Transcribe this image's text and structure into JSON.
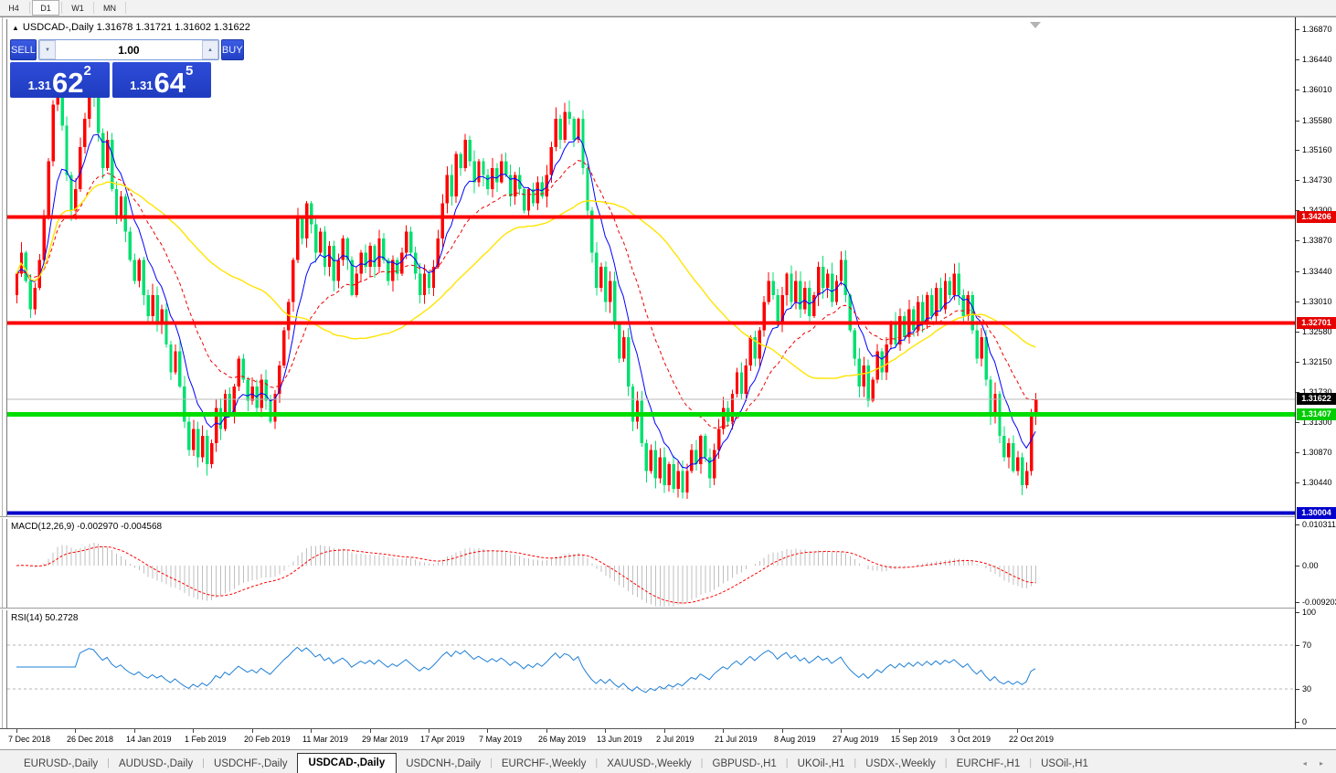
{
  "toolbar": {
    "timeframes": [
      {
        "label": "H4",
        "active": false
      },
      {
        "label": "D1",
        "active": true
      },
      {
        "label": "W1",
        "active": false
      },
      {
        "label": "MN",
        "active": false
      }
    ]
  },
  "chart": {
    "collapse_icon": "▲",
    "title": "USDCAD-,Daily  1.31678 1.31721 1.31602 1.31622"
  },
  "trade_panel": {
    "sell_label": "SELL",
    "buy_label": "BUY",
    "volume": "1.00",
    "down_icon": "▼",
    "up_icon": "▲",
    "bid_prefix": "1.31",
    "bid_big": "62",
    "bid_sup": "2",
    "ask_prefix": "1.31",
    "ask_big": "64",
    "ask_sup": "5"
  },
  "indicators": {
    "macd_label": "MACD(12,26,9) -0.002970 -0.004568",
    "rsi_label": "RSI(14) 50.2728"
  },
  "chart_data": {
    "type": "candlestick",
    "symbol": "USDCAD-",
    "timeframe": "Daily",
    "up_color": "#ff0000",
    "down_color": "#00e070",
    "first_open": 1.331,
    "closes": [
      1.334,
      1.337,
      1.333,
      1.329,
      1.332,
      1.336,
      1.342,
      1.35,
      1.358,
      1.3615,
      1.355,
      1.348,
      1.343,
      1.346,
      1.352,
      1.356,
      1.36,
      1.359,
      1.354,
      1.349,
      1.353,
      1.346,
      1.342,
      1.345,
      1.34,
      1.336,
      1.333,
      1.336,
      1.331,
      1.328,
      1.331,
      1.327,
      1.329,
      1.324,
      1.32,
      1.323,
      1.318,
      1.313,
      1.309,
      1.312,
      1.308,
      1.311,
      1.307,
      1.31,
      1.315,
      1.312,
      1.317,
      1.314,
      1.318,
      1.322,
      1.319,
      1.316,
      1.318,
      1.315,
      1.319,
      1.316,
      1.313,
      1.317,
      1.321,
      1.326,
      1.33,
      1.336,
      1.342,
      1.339,
      1.344,
      1.341,
      1.337,
      1.34,
      1.335,
      1.338,
      1.333,
      1.336,
      1.339,
      1.336,
      1.331,
      1.334,
      1.337,
      1.335,
      1.338,
      1.335,
      1.339,
      1.336,
      1.333,
      1.336,
      1.334,
      1.337,
      1.34,
      1.337,
      1.334,
      1.331,
      1.334,
      1.332,
      1.335,
      1.339,
      1.344,
      1.348,
      1.345,
      1.351,
      1.349,
      1.353,
      1.35,
      1.347,
      1.35,
      1.348,
      1.346,
      1.349,
      1.347,
      1.35,
      1.348,
      1.345,
      1.348,
      1.346,
      1.343,
      1.346,
      1.344,
      1.347,
      1.345,
      1.348,
      1.352,
      1.356,
      1.353,
      1.357,
      1.356,
      1.353,
      1.356,
      1.349,
      1.343,
      1.337,
      1.332,
      1.335,
      1.33,
      1.333,
      1.327,
      1.322,
      1.325,
      1.318,
      1.313,
      1.316,
      1.31,
      1.306,
      1.309,
      1.305,
      1.308,
      1.304,
      1.307,
      1.3035,
      1.306,
      1.303,
      1.306,
      1.309,
      1.307,
      1.311,
      1.308,
      1.305,
      1.309,
      1.312,
      1.315,
      1.313,
      1.317,
      1.32,
      1.317,
      1.321,
      1.325,
      1.322,
      1.326,
      1.33,
      1.333,
      1.331,
      1.327,
      1.331,
      1.334,
      1.33,
      1.333,
      1.329,
      1.332,
      1.328,
      1.331,
      1.335,
      1.332,
      1.334,
      1.33,
      1.333,
      1.336,
      1.331,
      1.326,
      1.322,
      1.318,
      1.321,
      1.316,
      1.319,
      1.323,
      1.32,
      1.324,
      1.327,
      1.324,
      1.328,
      1.325,
      1.329,
      1.326,
      1.33,
      1.327,
      1.331,
      1.328,
      1.332,
      1.329,
      1.333,
      1.331,
      1.334,
      1.331,
      1.328,
      1.331,
      1.326,
      1.322,
      1.325,
      1.319,
      1.314,
      1.317,
      1.311,
      1.308,
      1.31,
      1.306,
      1.308,
      1.304,
      1.306,
      1.314,
      1.31622
    ],
    "ma_lines": [
      {
        "name": "fast-ma",
        "period": 8,
        "color": "#0000ff",
        "style": "solid",
        "width": 1
      },
      {
        "name": "mid-ma",
        "period": 21,
        "color": "#f00000",
        "style": "dash",
        "width": 1
      },
      {
        "name": "slow-ma",
        "period": 50,
        "color": "#ffe400",
        "style": "solid",
        "width": 1.4
      }
    ],
    "price_ticks": [
      1.3687,
      1.3644,
      1.3601,
      1.3558,
      1.3516,
      1.3473,
      1.343,
      1.3387,
      1.3344,
      1.3301,
      1.3258,
      1.3215,
      1.3173,
      1.313,
      1.3087,
      1.3044
    ],
    "hlines": [
      {
        "price": 1.34206,
        "badge": "1.34206",
        "color": "#ff0000",
        "badge_bg": "#e60000",
        "width": 4
      },
      {
        "price": 1.32701,
        "badge": "1.32701",
        "color": "#ff0000",
        "badge_bg": "#e60000",
        "width": 4
      },
      {
        "price": 1.31407,
        "badge": "1.31407",
        "color": "#00dd00",
        "badge_bg": "#00cc00",
        "width": 5
      },
      {
        "price": 1.30004,
        "badge": "1.30004",
        "color": "#0000c8",
        "badge_bg": "#0000cc",
        "width": 4
      }
    ],
    "current_price": {
      "value": 1.31622,
      "badge": "1.31622",
      "line_color": "#b8b8b8",
      "badge_bg": "#000000"
    },
    "ylim": [
      1.2995,
      1.37
    ],
    "date_ticks": {
      "bar_indices": [
        0,
        13,
        26,
        39,
        52,
        65,
        78,
        91,
        104,
        117,
        130,
        143,
        156,
        169,
        182,
        195,
        208,
        221
      ],
      "labels": [
        "7 Dec 2018",
        "26 Dec 2018",
        "14 Jan 2019",
        "1 Feb 2019",
        "20 Feb 2019",
        "11 Mar 2019",
        "29 Mar 2019",
        "17 Apr 2019",
        "7 May 2019",
        "26 May 2019",
        "13 Jun 2019",
        "2 Jul 2019",
        "21 Jul 2019",
        "8 Aug 2019",
        "27 Aug 2019",
        "15 Sep 2019",
        "3 Oct 2019",
        "22 Oct 2019"
      ]
    },
    "macd": {
      "params": "12,26,9",
      "axis_max": 0.010311,
      "axis_min": -0.009203,
      "axis_labels": [
        "0.010311",
        "0.00",
        "-0.009203"
      ],
      "value": -0.00297,
      "signal_value": -0.004568,
      "histogram_color": "#bfbfbf",
      "signal_color": "#ff0000"
    },
    "rsi": {
      "period": 14,
      "value": 50.2728,
      "levels": [
        70,
        30
      ],
      "axis_labels": [
        "100",
        "70",
        "30",
        "0"
      ],
      "line_color": "#1e7fd6",
      "level_color": "#b4b4b4"
    }
  },
  "tabs": {
    "items": [
      {
        "label": "EURUSD-,Daily",
        "active": false
      },
      {
        "label": "AUDUSD-,Daily",
        "active": false
      },
      {
        "label": "USDCHF-,Daily",
        "active": false
      },
      {
        "label": "USDCAD-,Daily",
        "active": true
      },
      {
        "label": "USDCNH-,Daily",
        "active": false
      },
      {
        "label": "EURCHF-,Weekly",
        "active": false
      },
      {
        "label": "XAUUSD-,Weekly",
        "active": false
      },
      {
        "label": "GBPUSD-,H1",
        "active": false
      },
      {
        "label": "UKOil-,H1",
        "active": false
      },
      {
        "label": "USDX-,Weekly",
        "active": false
      },
      {
        "label": "EURCHF-,H1",
        "active": false
      },
      {
        "label": "USOil-,H1",
        "active": false
      }
    ],
    "left_arrow": "◂",
    "right_arrow": "▸"
  }
}
